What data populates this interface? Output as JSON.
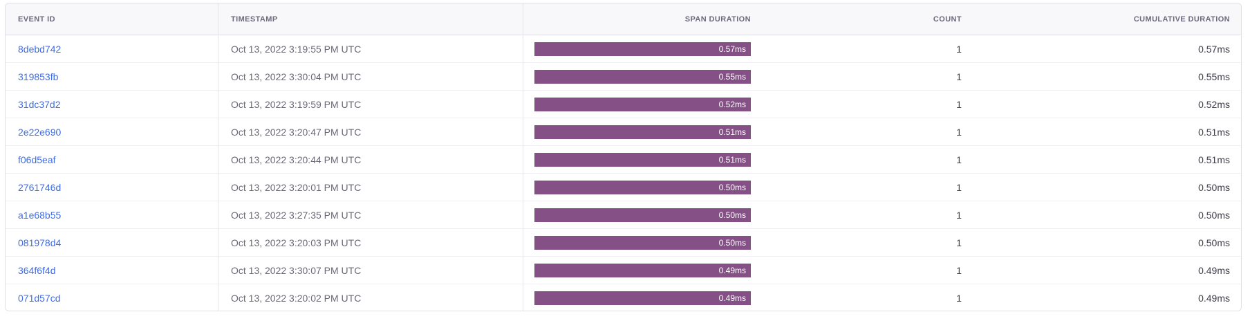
{
  "colors": {
    "bar_color": "#855086",
    "link_color": "#3c6ce8",
    "header_bg": "#f8f8fa",
    "header_text": "#6b6a7d",
    "timestamp_text": "#6c6878",
    "border_outer": "#dfdfe7",
    "border_row": "#ededf2",
    "border_col": "#e4e4ea"
  },
  "table": {
    "columns": {
      "event_id": "EVENT ID",
      "timestamp": "TIMESTAMP",
      "span_duration": "SPAN DURATION",
      "count": "COUNT",
      "cumulative_duration": "CUMULATIVE DURATION"
    },
    "rows": [
      {
        "event_id": "8debd742",
        "timestamp": "Oct 13, 2022 3:19:55 PM UTC",
        "span_duration": "0.57ms",
        "count": "1",
        "cumulative_duration": "0.57ms"
      },
      {
        "event_id": "319853fb",
        "timestamp": "Oct 13, 2022 3:30:04 PM UTC",
        "span_duration": "0.55ms",
        "count": "1",
        "cumulative_duration": "0.55ms"
      },
      {
        "event_id": "31dc37d2",
        "timestamp": "Oct 13, 2022 3:19:59 PM UTC",
        "span_duration": "0.52ms",
        "count": "1",
        "cumulative_duration": "0.52ms"
      },
      {
        "event_id": "2e22e690",
        "timestamp": "Oct 13, 2022 3:20:47 PM UTC",
        "span_duration": "0.51ms",
        "count": "1",
        "cumulative_duration": "0.51ms"
      },
      {
        "event_id": "f06d5eaf",
        "timestamp": "Oct 13, 2022 3:20:44 PM UTC",
        "span_duration": "0.51ms",
        "count": "1",
        "cumulative_duration": "0.51ms"
      },
      {
        "event_id": "2761746d",
        "timestamp": "Oct 13, 2022 3:20:01 PM UTC",
        "span_duration": "0.50ms",
        "count": "1",
        "cumulative_duration": "0.50ms"
      },
      {
        "event_id": "a1e68b55",
        "timestamp": "Oct 13, 2022 3:27:35 PM UTC",
        "span_duration": "0.50ms",
        "count": "1",
        "cumulative_duration": "0.50ms"
      },
      {
        "event_id": "081978d4",
        "timestamp": "Oct 13, 2022 3:20:03 PM UTC",
        "span_duration": "0.50ms",
        "count": "1",
        "cumulative_duration": "0.50ms"
      },
      {
        "event_id": "364f6f4d",
        "timestamp": "Oct 13, 2022 3:30:07 PM UTC",
        "span_duration": "0.49ms",
        "count": "1",
        "cumulative_duration": "0.49ms"
      },
      {
        "event_id": "071d57cd",
        "timestamp": "Oct 13, 2022 3:20:02 PM UTC",
        "span_duration": "0.49ms",
        "count": "1",
        "cumulative_duration": "0.49ms"
      }
    ]
  }
}
